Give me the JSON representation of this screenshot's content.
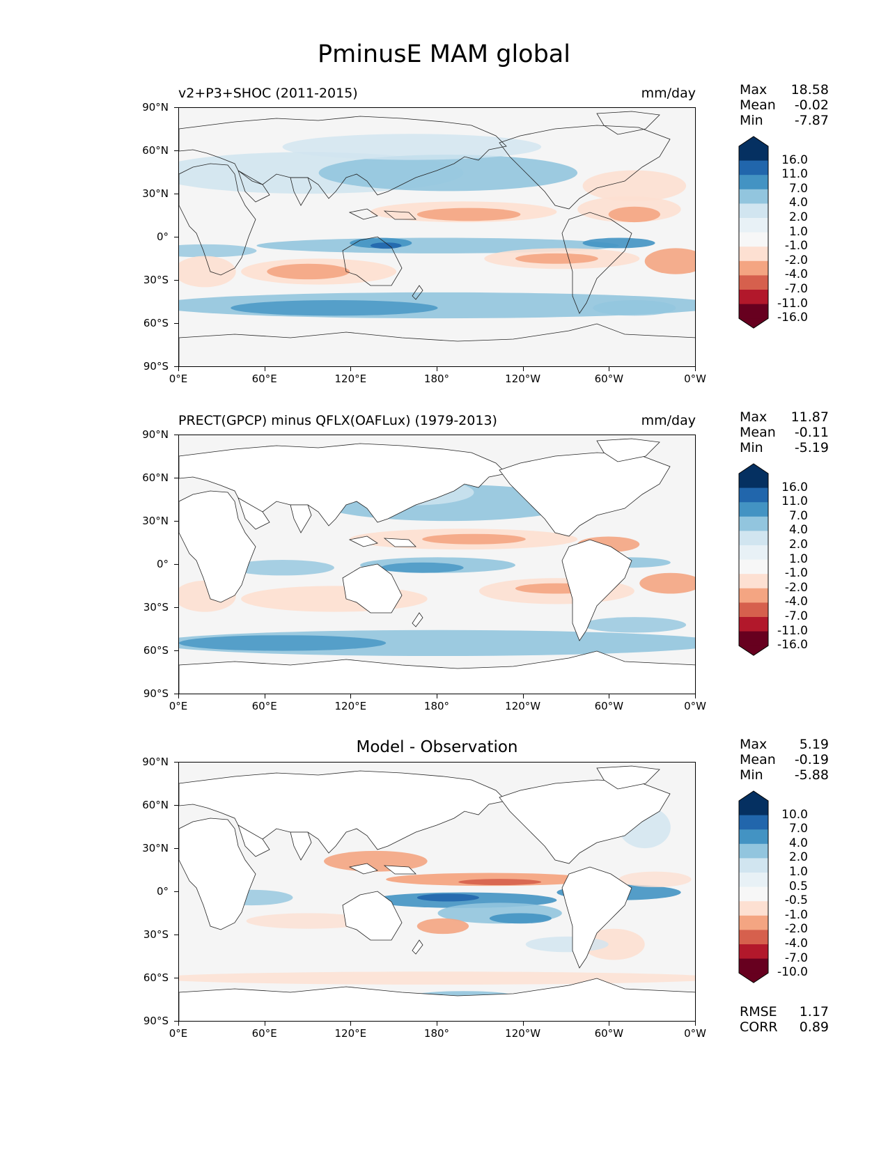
{
  "title": "PminusE MAM global",
  "xticks": [
    "0°E",
    "60°E",
    "120°E",
    "180°",
    "120°W",
    "60°W",
    "0°W"
  ],
  "yticks": [
    "90°N",
    "60°N",
    "30°N",
    "0°",
    "30°S",
    "60°S",
    "90°S"
  ],
  "panels": [
    {
      "title": "v2+P3+SHOC (2011-2015)",
      "units": "mm/day",
      "stats": [
        {
          "label": "Max",
          "value": "18.58"
        },
        {
          "label": "Mean",
          "value": "-0.02"
        },
        {
          "label": "Min",
          "value": "-7.87"
        }
      ],
      "levels": [
        "16.0",
        "11.0",
        "7.0",
        "4.0",
        "2.0",
        "1.0",
        "-1.0",
        "-2.0",
        "-4.0",
        "-7.0",
        "-11.0",
        "-16.0"
      ]
    },
    {
      "title": "PRECT(GPCP) minus QFLX(OAFLux) (1979-2013)",
      "units": "mm/day",
      "stats": [
        {
          "label": "Max",
          "value": "11.87"
        },
        {
          "label": "Mean",
          "value": "-0.11"
        },
        {
          "label": "Min",
          "value": "-5.19"
        }
      ],
      "levels": [
        "16.0",
        "11.0",
        "7.0",
        "4.0",
        "2.0",
        "1.0",
        "-1.0",
        "-2.0",
        "-4.0",
        "-7.0",
        "-11.0",
        "-16.0"
      ]
    },
    {
      "title": "Model - Observation",
      "units": "",
      "stats": [
        {
          "label": "Max",
          "value": "5.19"
        },
        {
          "label": "Mean",
          "value": "-0.19"
        },
        {
          "label": "Min",
          "value": "-5.88"
        }
      ],
      "levels": [
        "10.0",
        "7.0",
        "4.0",
        "2.0",
        "1.0",
        "0.5",
        "-0.5",
        "-1.0",
        "-2.0",
        "-4.0",
        "-7.0",
        "-10.0"
      ],
      "error_stats": [
        {
          "label": "RMSE",
          "value": "1.17"
        },
        {
          "label": "CORR",
          "value": "0.89"
        }
      ]
    }
  ],
  "colorbar_colors": [
    "#053061",
    "#2166ac",
    "#4393c3",
    "#92c5de",
    "#d1e5f0",
    "#e8f1f6",
    "#f7f7f7",
    "#fde0d2",
    "#f4a582",
    "#d6604d",
    "#b2182b",
    "#67001f"
  ],
  "chart_data": [
    {
      "type": "heatmap",
      "title": "v2+P3+SHOC (2011-2015)",
      "units": "mm/day",
      "xlim": [
        0,
        360
      ],
      "ylim": [
        -90,
        90
      ],
      "max": 18.58,
      "mean": -0.02,
      "min": -7.87
    },
    {
      "type": "heatmap",
      "title": "PRECT(GPCP) minus QFLX(OAFLux) (1979-2013)",
      "units": "mm/day",
      "xlim": [
        0,
        360
      ],
      "ylim": [
        -90,
        90
      ],
      "max": 11.87,
      "mean": -0.11,
      "min": -5.19
    },
    {
      "type": "heatmap",
      "title": "Model - Observation",
      "xlim": [
        0,
        360
      ],
      "ylim": [
        -90,
        90
      ],
      "max": 5.19,
      "mean": -0.19,
      "min": -5.88,
      "rmse": 1.17,
      "corr": 0.89
    }
  ]
}
